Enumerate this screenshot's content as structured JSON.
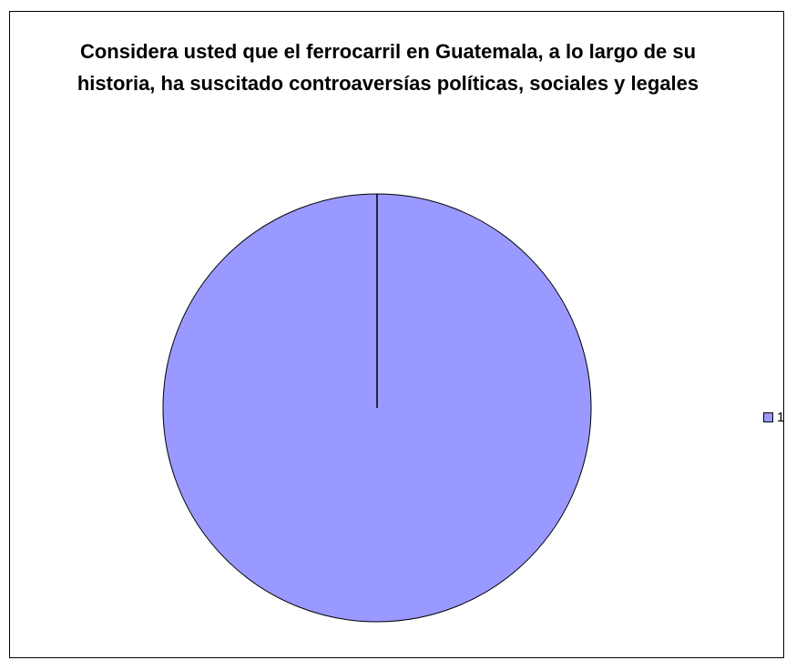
{
  "chart_data": {
    "type": "pie",
    "title": "Considera usted que el ferrocarril en Guatemala, a lo largo de su historia, ha suscitado controaversías políticas, sociales y legales",
    "categories": [
      "1"
    ],
    "values": [
      100
    ],
    "colors": [
      "#9999ff"
    ],
    "legend_position": "right"
  }
}
